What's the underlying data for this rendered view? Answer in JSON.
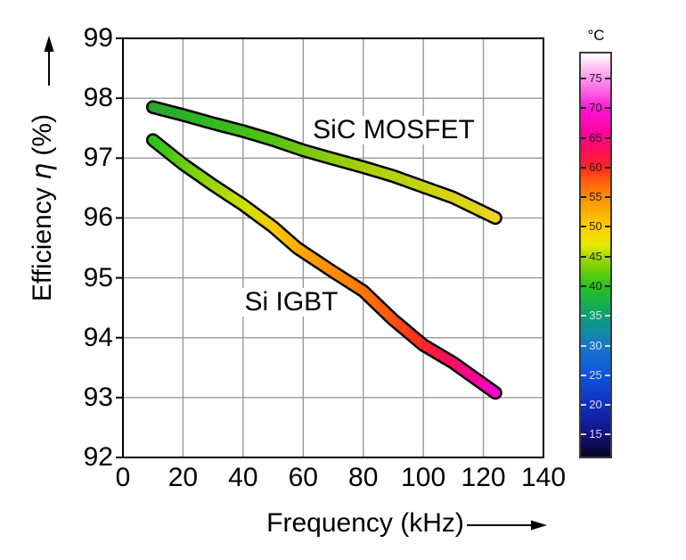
{
  "figure": {
    "ylabel_parts": {
      "pre": "Efficiency ",
      "symbol": "η",
      "post": " (%)"
    }
  },
  "chart_data": {
    "type": "line",
    "title": "",
    "xlabel": "Frequency (kHz)",
    "ylabel": "Efficiency η (%)",
    "xlim": [
      0,
      140
    ],
    "ylim": [
      92,
      99
    ],
    "xticks": [
      0,
      20,
      40,
      60,
      80,
      100,
      120,
      140
    ],
    "yticks": [
      99,
      98,
      97,
      96,
      95,
      94,
      93,
      92
    ],
    "grid": true,
    "legend_position": "inline-labels",
    "series": [
      {
        "name": "SiC MOSFET",
        "x": [
          10,
          20,
          30,
          40,
          50,
          60,
          67,
          80,
          90,
          100,
          110,
          124
        ],
        "y": [
          97.85,
          97.72,
          97.58,
          97.45,
          97.3,
          97.13,
          97.03,
          96.85,
          96.7,
          96.52,
          96.34,
          96.0
        ],
        "temp_c_estimated": [
          38,
          39,
          40,
          41,
          42,
          43,
          44,
          45.5,
          46.5,
          47.5,
          48.5,
          50
        ],
        "gradient": [
          {
            "o": 0.0,
            "c": "#2da32c"
          },
          {
            "o": 0.15,
            "c": "#2cb91f"
          },
          {
            "o": 0.35,
            "c": "#55c313"
          },
          {
            "o": 0.5,
            "c": "#8aca0c"
          },
          {
            "o": 0.65,
            "c": "#b0d00a"
          },
          {
            "o": 0.82,
            "c": "#ccd30e"
          },
          {
            "o": 1.0,
            "c": "#edd51f"
          }
        ]
      },
      {
        "name": "Si IGBT",
        "x": [
          10,
          20,
          30,
          40,
          50,
          58,
          70,
          80,
          90,
          100,
          110,
          124
        ],
        "y": [
          97.3,
          96.9,
          96.55,
          96.22,
          95.85,
          95.5,
          95.1,
          94.78,
          94.3,
          93.88,
          93.58,
          93.08
        ],
        "temp_c_estimated": [
          41,
          43,
          45,
          47,
          49,
          52,
          55,
          57,
          60,
          62.5,
          65,
          69
        ],
        "gradient": [
          {
            "o": 0.0,
            "c": "#2bc31a"
          },
          {
            "o": 0.1,
            "c": "#6fce0b"
          },
          {
            "o": 0.2,
            "c": "#abdb02"
          },
          {
            "o": 0.28,
            "c": "#d6de00"
          },
          {
            "o": 0.36,
            "c": "#f8c800"
          },
          {
            "o": 0.46,
            "c": "#ff9e00"
          },
          {
            "o": 0.58,
            "c": "#ff8200"
          },
          {
            "o": 0.68,
            "c": "#ff5c08"
          },
          {
            "o": 0.77,
            "c": "#ff2e1e"
          },
          {
            "o": 0.86,
            "c": "#fa0f5c"
          },
          {
            "o": 0.93,
            "c": "#f80591"
          },
          {
            "o": 1.0,
            "c": "#fe01cf"
          }
        ]
      }
    ],
    "colorbar": {
      "title": "°C",
      "ticks": [
        75,
        70,
        65,
        60,
        55,
        50,
        45,
        40,
        35,
        30,
        25,
        20,
        15
      ],
      "range": [
        11,
        79.5
      ],
      "stops": [
        {
          "t": 11,
          "c": "#06051f"
        },
        {
          "t": 15,
          "c": "#131283"
        },
        {
          "t": 20,
          "c": "#1030c0"
        },
        {
          "t": 25,
          "c": "#0f55dd"
        },
        {
          "t": 30,
          "c": "#1579c8"
        },
        {
          "t": 35,
          "c": "#0aa272"
        },
        {
          "t": 40,
          "c": "#2cc31c"
        },
        {
          "t": 44,
          "c": "#8ad505"
        },
        {
          "t": 47,
          "c": "#e6e800"
        },
        {
          "t": 50,
          "c": "#ffcf00"
        },
        {
          "t": 55,
          "c": "#ff9000"
        },
        {
          "t": 58,
          "c": "#ff5a10"
        },
        {
          "t": 60,
          "c": "#ff2a1e"
        },
        {
          "t": 63,
          "c": "#ff0c5a"
        },
        {
          "t": 66,
          "c": "#fc03a0"
        },
        {
          "t": 70,
          "c": "#fb14d4"
        },
        {
          "t": 74,
          "c": "#ff7ae8"
        },
        {
          "t": 77,
          "c": "#ffc0f4"
        },
        {
          "t": 79.5,
          "c": "#ffffff"
        }
      ],
      "label_color_dark": "#1f1f1f",
      "label_color_light": "#dcdce4"
    }
  }
}
